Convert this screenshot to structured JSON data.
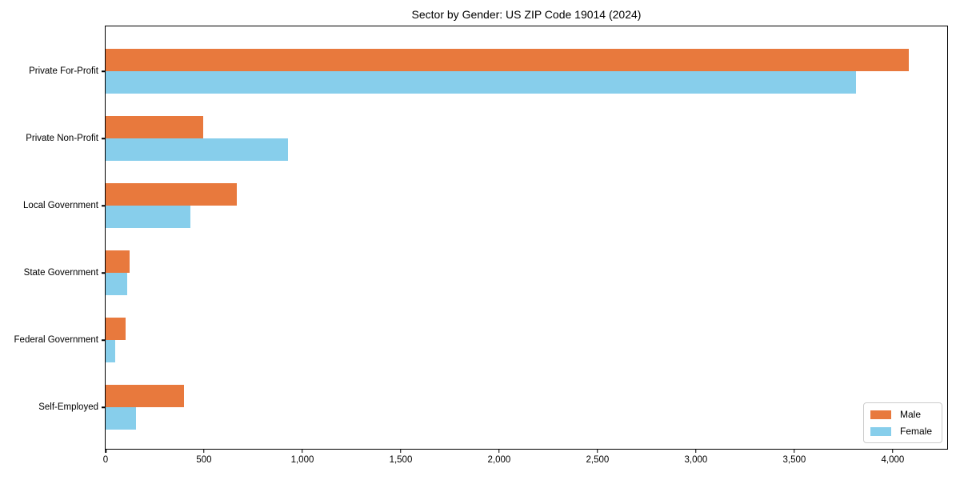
{
  "chart_data": {
    "type": "bar",
    "orientation": "horizontal",
    "title": "Sector by Gender: US ZIP Code 19014 (2024)",
    "xlabel": "",
    "ylabel": "",
    "grid": false,
    "background": "#ffffff",
    "axis_color": "#000000",
    "categories": [
      "Private For-Profit",
      "Private Non-Profit",
      "Local Government",
      "State Government",
      "Federal Government",
      "Self-Employed"
    ],
    "series": [
      {
        "name": "Male",
        "color": "#E8793D",
        "values": [
          4080,
          495,
          665,
          120,
          100,
          400
        ]
      },
      {
        "name": "Female",
        "color": "#87CEEB",
        "values": [
          3815,
          925,
          430,
          110,
          50,
          155
        ]
      }
    ],
    "xlim": [
      0,
      4285
    ],
    "x_ticks": [
      {
        "value": 0,
        "label": "0"
      },
      {
        "value": 500,
        "label": "500"
      },
      {
        "value": 1000,
        "label": "1,000"
      },
      {
        "value": 1500,
        "label": "1,500"
      },
      {
        "value": 2000,
        "label": "2,000"
      },
      {
        "value": 2500,
        "label": "2,500"
      },
      {
        "value": 3000,
        "label": "3,000"
      },
      {
        "value": 3500,
        "label": "3,500"
      },
      {
        "value": 4000,
        "label": "4,000"
      }
    ],
    "legend": {
      "position": "lower-right",
      "entries": [
        "Male",
        "Female"
      ]
    }
  }
}
